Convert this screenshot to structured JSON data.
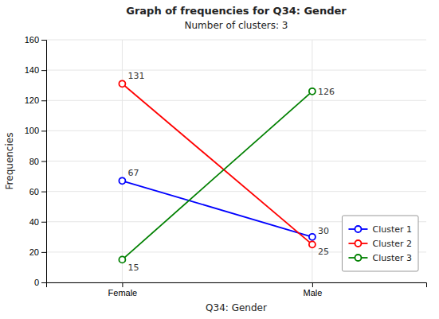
{
  "chart_data": {
    "type": "line",
    "title": "Graph of frequencies for Q34: Gender",
    "subtitle": "Number of clusters: 3",
    "xlabel": "Q34: Gender",
    "ylabel": "Frequencies",
    "categories": [
      "Female",
      "Male"
    ],
    "series": [
      {
        "name": "Cluster 1",
        "color": "#0000ff",
        "values": [
          67,
          30
        ]
      },
      {
        "name": "Cluster 2",
        "color": "#ff0000",
        "values": [
          131,
          25
        ]
      },
      {
        "name": "Cluster 3",
        "color": "#008000",
        "values": [
          15,
          126
        ]
      }
    ],
    "ylim": [
      0,
      160
    ],
    "yticks": [
      0,
      20,
      40,
      60,
      80,
      100,
      120,
      140,
      160
    ],
    "marker": "circle",
    "data_labels": true,
    "grid": true,
    "legend": "lower right"
  }
}
